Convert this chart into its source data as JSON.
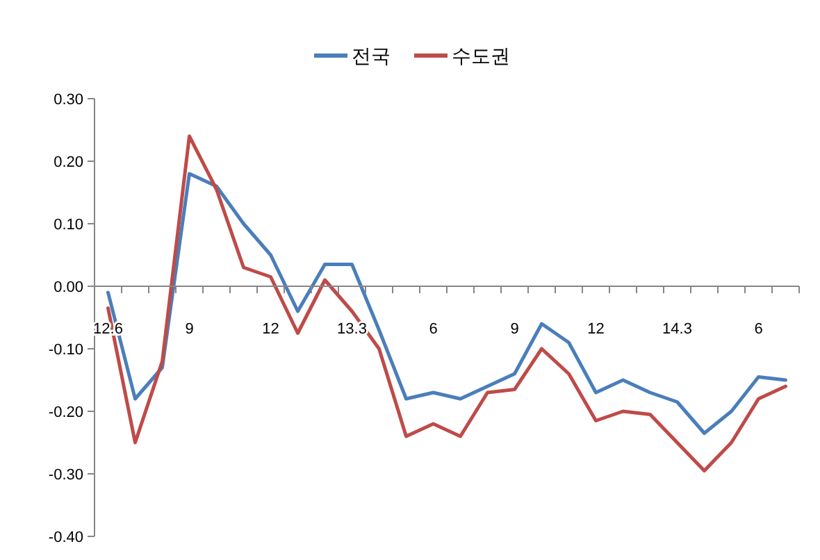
{
  "chart_data": {
    "type": "line",
    "categories": [
      "12.6",
      null,
      null,
      "9",
      null,
      null,
      "12",
      null,
      null,
      "13.3",
      null,
      null,
      "6",
      null,
      null,
      "9",
      null,
      null,
      "12",
      null,
      null,
      "14.3",
      null,
      null,
      "6",
      null
    ],
    "series": [
      {
        "name": "전국",
        "color": "#4a7ebb",
        "values": [
          -0.01,
          -0.18,
          -0.13,
          0.18,
          0.16,
          0.1,
          0.05,
          -0.04,
          0.035,
          0.035,
          -0.07,
          -0.18,
          -0.17,
          -0.18,
          -0.16,
          -0.14,
          -0.06,
          -0.09,
          -0.17,
          -0.15,
          -0.17,
          -0.185,
          -0.235,
          -0.2,
          -0.145,
          -0.15
        ]
      },
      {
        "name": "수도권",
        "color": "#be4b48",
        "values": [
          -0.035,
          -0.25,
          -0.12,
          0.24,
          0.155,
          0.03,
          0.015,
          -0.075,
          0.01,
          -0.04,
          -0.1,
          -0.24,
          -0.22,
          -0.24,
          -0.17,
          -0.165,
          -0.1,
          -0.14,
          -0.215,
          -0.2,
          -0.205,
          -0.25,
          -0.295,
          -0.25,
          -0.18,
          -0.16
        ]
      }
    ],
    "ylim": [
      -0.4,
      0.3
    ],
    "yticks": [
      {
        "value": -0.4,
        "label": "-0.40"
      },
      {
        "value": -0.3,
        "label": "-0.30"
      },
      {
        "value": -0.2,
        "label": "-0.20"
      },
      {
        "value": -0.1,
        "label": "-0.10"
      },
      {
        "value": 0,
        "label": "0.00"
      },
      {
        "value": 0.1,
        "label": "0.10"
      },
      {
        "value": 0.2,
        "label": "0.20"
      },
      {
        "value": 0.3,
        "label": "0.30"
      }
    ],
    "legend": "top"
  }
}
